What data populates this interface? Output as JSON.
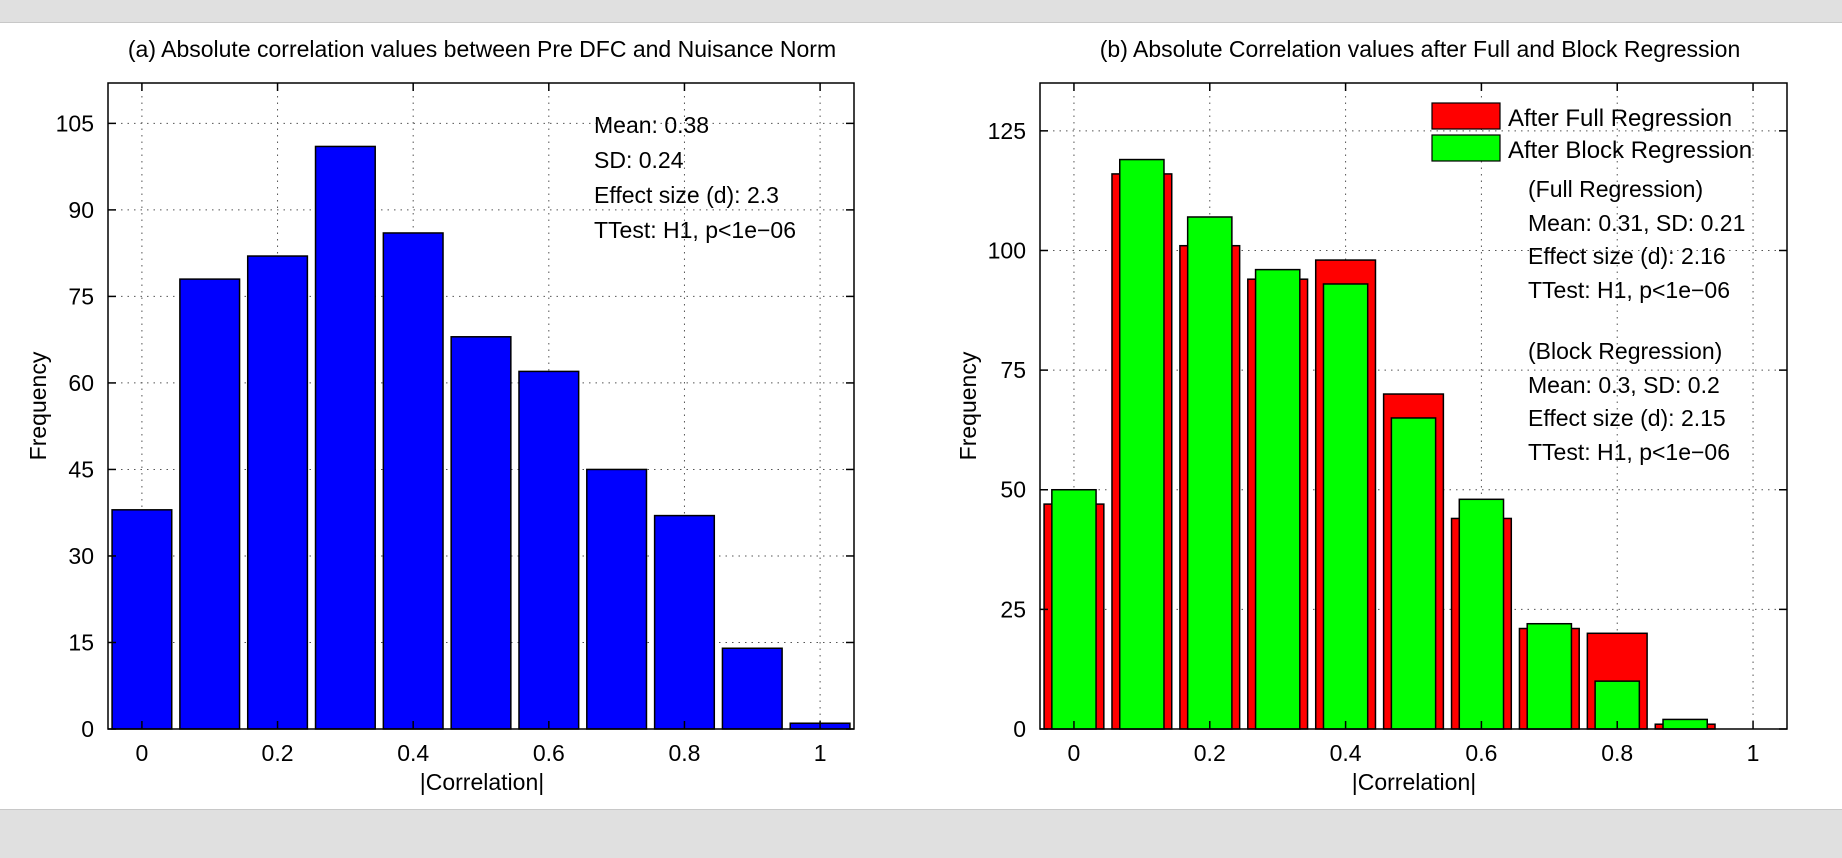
{
  "figure": {
    "background": "#ffffff",
    "page_background": "#e0e0e0"
  },
  "chart_data": [
    {
      "type": "bar",
      "title": "(a) Absolute correlation values between Pre DFC and Nuisance Norm",
      "xlabel": "|Correlation|",
      "ylabel": "Frequency",
      "x": [
        0,
        0.1,
        0.2,
        0.3,
        0.4,
        0.5,
        0.6,
        0.7,
        0.8,
        0.9,
        1.0
      ],
      "xlim": [
        -0.05,
        1.05
      ],
      "ylim": [
        0,
        112
      ],
      "xticks": [
        0,
        0.2,
        0.4,
        0.6,
        0.8,
        1
      ],
      "xtick_labels": [
        "0",
        "0.2",
        "0.4",
        "0.6",
        "0.8",
        "1"
      ],
      "yticks": [
        0,
        15,
        30,
        45,
        60,
        75,
        90,
        105
      ],
      "ytick_labels": [
        "0",
        "15",
        "30",
        "45",
        "60",
        "75",
        "90",
        "105"
      ],
      "grid": true,
      "series": [
        {
          "name": "Absolute correlation",
          "color": "#0000ff",
          "values": [
            38,
            78,
            82,
            101,
            86,
            68,
            62,
            45,
            37,
            14,
            1
          ]
        }
      ],
      "annotations": [
        "Mean: 0.38",
        "SD: 0.24",
        "Effect size (d): 2.3",
        "TTest: H1, p<1e−06"
      ]
    },
    {
      "type": "bar",
      "title": "(b) Absolute Correlation values after Full and Block Regression",
      "xlabel": "|Correlation|",
      "ylabel": "Frequency",
      "x": [
        0,
        0.1,
        0.2,
        0.3,
        0.4,
        0.5,
        0.6,
        0.7,
        0.8,
        0.9,
        1.0
      ],
      "xlim": [
        -0.05,
        1.05
      ],
      "ylim": [
        0,
        135
      ],
      "xticks": [
        0,
        0.2,
        0.4,
        0.6,
        0.8,
        1
      ],
      "xtick_labels": [
        "0",
        "0.2",
        "0.4",
        "0.6",
        "0.8",
        "1"
      ],
      "yticks": [
        0,
        25,
        50,
        75,
        100,
        125
      ],
      "ytick_labels": [
        "0",
        "25",
        "50",
        "75",
        "100",
        "125"
      ],
      "grid": true,
      "legend_position": "top-right",
      "series": [
        {
          "name": "After Full Regression",
          "color": "#ff0000",
          "values": [
            47,
            116,
            101,
            94,
            98,
            70,
            44,
            21,
            20,
            1,
            0
          ]
        },
        {
          "name": "After Block Regression",
          "color": "#00ff00",
          "values": [
            50,
            119,
            107,
            96,
            93,
            65,
            48,
            22,
            10,
            2,
            0
          ]
        }
      ],
      "annotations": [
        "(Full Regression)",
        "Mean: 0.31, SD: 0.21",
        "Effect size (d): 2.16",
        "TTest: H1, p<1e−06",
        "(Block Regression)",
        "Mean: 0.3, SD: 0.2",
        "Effect size (d): 2.15",
        "TTest: H1, p<1e−06"
      ]
    }
  ]
}
